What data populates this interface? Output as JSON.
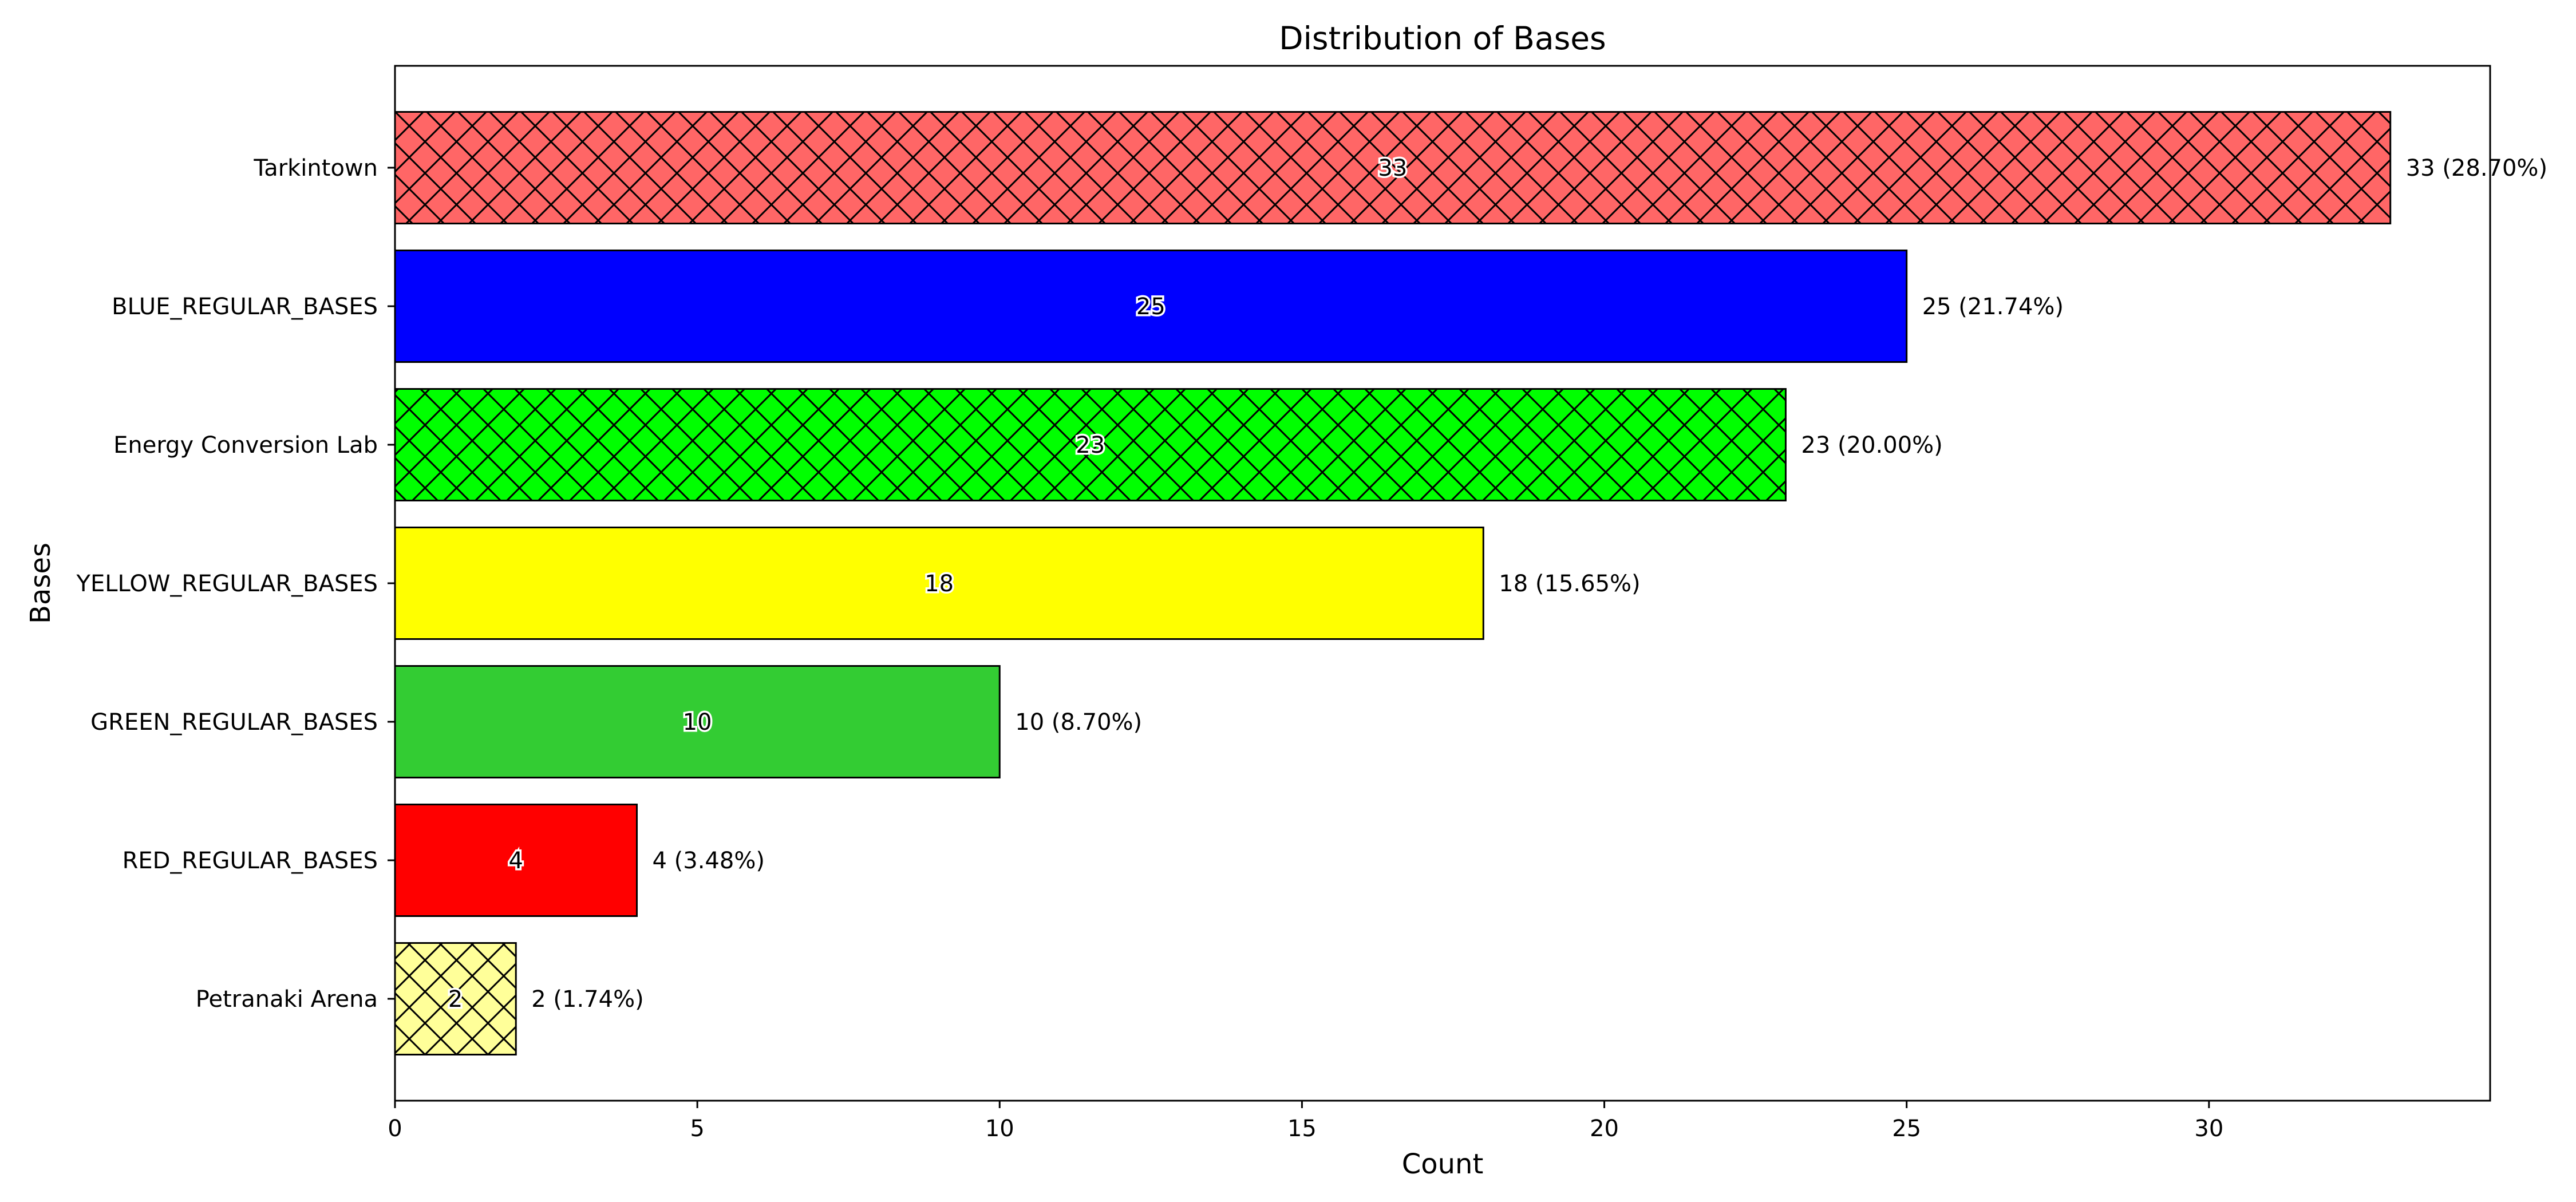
{
  "chart_data": {
    "type": "bar",
    "orientation": "horizontal",
    "title": "Distribution of Bases",
    "xlabel": "Count",
    "ylabel": "Bases",
    "xlim": [
      0,
      34.65
    ],
    "xticks": [
      0,
      5,
      10,
      15,
      20,
      25,
      30
    ],
    "grid": false,
    "legend": "none",
    "bars": [
      {
        "category": "Tarkintown",
        "value": 33,
        "inside_label": "33",
        "outside_label": "33 (28.70%)",
        "color": "#FF6666",
        "hatch": true
      },
      {
        "category": "BLUE_REGULAR_BASES",
        "value": 25,
        "inside_label": "25",
        "outside_label": "25 (21.74%)",
        "color": "#0000FF",
        "hatch": false
      },
      {
        "category": "Energy Conversion Lab",
        "value": 23,
        "inside_label": "23",
        "outside_label": "23 (20.00%)",
        "color": "#00FF00",
        "hatch": true
      },
      {
        "category": "YELLOW_REGULAR_BASES",
        "value": 18,
        "inside_label": "18",
        "outside_label": "18 (15.65%)",
        "color": "#FFFF00",
        "hatch": false
      },
      {
        "category": "GREEN_REGULAR_BASES",
        "value": 10,
        "inside_label": "10",
        "outside_label": "10 (8.70%)",
        "color": "#33CC33",
        "hatch": false
      },
      {
        "category": "RED_REGULAR_BASES",
        "value": 4,
        "inside_label": "4",
        "outside_label": "4 (3.48%)",
        "color": "#FF0000",
        "hatch": false
      },
      {
        "category": "Petranaki Arena",
        "value": 2,
        "inside_label": "2",
        "outside_label": "2 (1.74%)",
        "color": "#FFFF99",
        "hatch": true
      }
    ]
  }
}
